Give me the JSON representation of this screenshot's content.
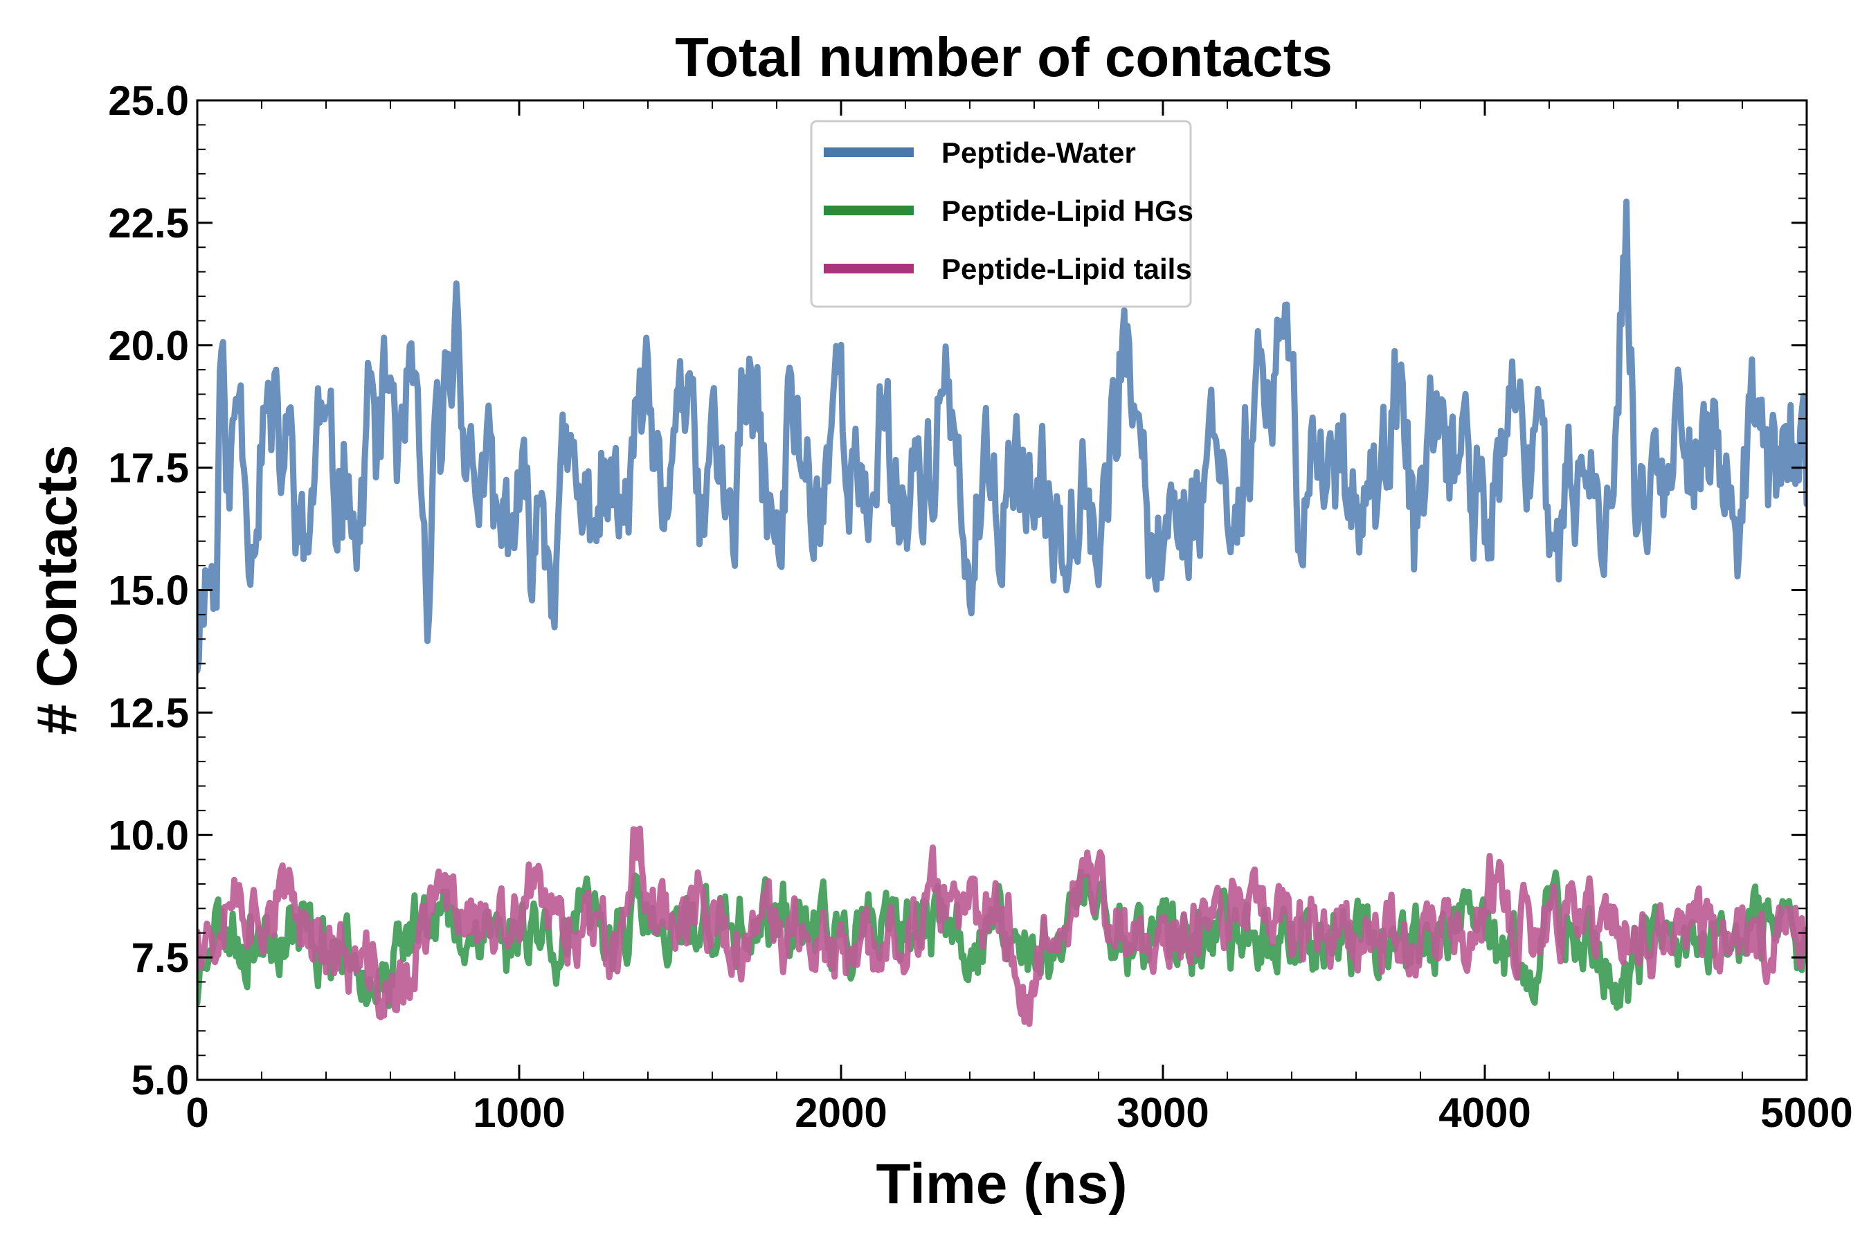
{
  "chart_data": {
    "type": "line",
    "title": "Total number of contacts",
    "xlabel": "Time (ns)",
    "ylabel": "# Contacts",
    "xlim": [
      0,
      5000
    ],
    "ylim": [
      5.0,
      25.0
    ],
    "x_ticks": [
      0,
      1000,
      2000,
      3000,
      4000,
      5000
    ],
    "x_tick_labels": [
      "0",
      "1000",
      "2000",
      "3000",
      "4000",
      "5000"
    ],
    "y_ticks": [
      5.0,
      7.5,
      10.0,
      12.5,
      15.0,
      17.5,
      20.0,
      22.5,
      25.0
    ],
    "y_tick_labels": [
      "5.0",
      "7.5",
      "10.0",
      "12.5",
      "15.0",
      "17.5",
      "20.0",
      "22.5",
      "25.0"
    ],
    "grid": false,
    "legend_position": "top-center",
    "series": [
      {
        "name": "Peptide-Water",
        "legend_color": "#4a78aa",
        "line_color": "#6a90bd",
        "anchors": [
          [
            0,
            14.0
          ],
          [
            20,
            15.7
          ],
          [
            60,
            15.2
          ],
          [
            70,
            19.9
          ],
          [
            100,
            17.0
          ],
          [
            130,
            19.4
          ],
          [
            170,
            16.2
          ],
          [
            210,
            18.8
          ],
          [
            260,
            17.6
          ],
          [
            300,
            17.9
          ],
          [
            330,
            15.3
          ],
          [
            380,
            18.6
          ],
          [
            430,
            16.8
          ],
          [
            470,
            18.2
          ],
          [
            500,
            15.6
          ],
          [
            530,
            19.0
          ],
          [
            560,
            17.8
          ],
          [
            600,
            19.4
          ],
          [
            640,
            17.1
          ],
          [
            660,
            19.6
          ],
          [
            700,
            16.0
          ],
          [
            720,
            14.1
          ],
          [
            740,
            17.4
          ],
          [
            780,
            19.2
          ],
          [
            810,
            21.0
          ],
          [
            840,
            17.4
          ],
          [
            900,
            17.2
          ],
          [
            940,
            15.8
          ],
          [
            980,
            16.6
          ],
          [
            1000,
            16.4
          ],
          [
            1040,
            15.9
          ],
          [
            1070,
            17.4
          ],
          [
            1100,
            15.7
          ],
          [
            1150,
            17.5
          ],
          [
            1200,
            16.3
          ],
          [
            1250,
            17.1
          ],
          [
            1290,
            16.8
          ],
          [
            1330,
            16.2
          ],
          [
            1370,
            18.8
          ],
          [
            1420,
            17.8
          ],
          [
            1450,
            15.1
          ],
          [
            1490,
            19.5
          ],
          [
            1530,
            18.2
          ],
          [
            1570,
            16.2
          ],
          [
            1610,
            18.1
          ],
          [
            1660,
            15.8
          ],
          [
            1700,
            19.1
          ],
          [
            1750,
            17.7
          ],
          [
            1810,
            15.4
          ],
          [
            1840,
            18.8
          ],
          [
            1880,
            17.8
          ],
          [
            1930,
            16.5
          ],
          [
            1990,
            19.6
          ],
          [
            2030,
            17.8
          ],
          [
            2080,
            16.0
          ],
          [
            2130,
            18.9
          ],
          [
            2180,
            16.8
          ],
          [
            2240,
            17.6
          ],
          [
            2280,
            17.2
          ],
          [
            2320,
            19.4
          ],
          [
            2360,
            16.8
          ],
          [
            2400,
            15.1
          ],
          [
            2440,
            17.3
          ],
          [
            2480,
            16.3
          ],
          [
            2530,
            17.8
          ],
          [
            2580,
            17.0
          ],
          [
            2620,
            16.5
          ],
          [
            2700,
            16.5
          ],
          [
            2760,
            17.9
          ],
          [
            2800,
            16.0
          ],
          [
            2850,
            18.1
          ],
          [
            2880,
            20.8
          ],
          [
            2920,
            17.4
          ],
          [
            2980,
            15.2
          ],
          [
            3020,
            17.1
          ],
          [
            3060,
            16.5
          ],
          [
            3120,
            16.9
          ],
          [
            3170,
            18.9
          ],
          [
            3210,
            16.3
          ],
          [
            3250,
            17.5
          ],
          [
            3300,
            19.3
          ],
          [
            3340,
            17.6
          ],
          [
            3370,
            21.0
          ],
          [
            3420,
            17.0
          ],
          [
            3470,
            17.7
          ],
          [
            3530,
            17.6
          ],
          [
            3600,
            17.4
          ],
          [
            3660,
            16.9
          ],
          [
            3700,
            17.5
          ],
          [
            3740,
            19.0
          ],
          [
            3780,
            16.1
          ],
          [
            3830,
            18.3
          ],
          [
            3880,
            16.9
          ],
          [
            3920,
            18.2
          ],
          [
            3970,
            17.1
          ],
          [
            4030,
            16.9
          ],
          [
            4080,
            18.6
          ],
          [
            4130,
            17.2
          ],
          [
            4170,
            19.7
          ],
          [
            4210,
            15.0
          ],
          [
            4230,
            14.8
          ],
          [
            4260,
            17.0
          ],
          [
            4300,
            17.5
          ],
          [
            4340,
            16.1
          ],
          [
            4380,
            17.5
          ],
          [
            4410,
            18.5
          ],
          [
            4440,
            22.7
          ],
          [
            4470,
            16.5
          ],
          [
            4510,
            17.5
          ],
          [
            4560,
            17.0
          ],
          [
            4620,
            19.1
          ],
          [
            4660,
            17.5
          ],
          [
            4720,
            17.8
          ],
          [
            4780,
            16.2
          ],
          [
            4830,
            18.0
          ],
          [
            4880,
            17.2
          ],
          [
            4940,
            18.0
          ],
          [
            4980,
            17.6
          ],
          [
            5000,
            17.1
          ]
        ],
        "noise_amp": 1.1,
        "seed": 11
      },
      {
        "name": "Peptide-Lipid HGs",
        "legend_color": "#2c8a3c",
        "line_color": "#3f9c56",
        "anchors": [
          [
            0,
            6.9
          ],
          [
            40,
            8.3
          ],
          [
            120,
            8.0
          ],
          [
            200,
            7.8
          ],
          [
            300,
            8.1
          ],
          [
            400,
            7.7
          ],
          [
            480,
            7.6
          ],
          [
            560,
            7.3
          ],
          [
            600,
            6.9
          ],
          [
            650,
            7.9
          ],
          [
            720,
            8.7
          ],
          [
            800,
            8.0
          ],
          [
            900,
            8.2
          ],
          [
            960,
            7.8
          ],
          [
            1040,
            8.4
          ],
          [
            1100,
            7.9
          ],
          [
            1200,
            8.1
          ],
          [
            1300,
            8.2
          ],
          [
            1400,
            8.3
          ],
          [
            1460,
            7.4
          ],
          [
            1520,
            8.2
          ],
          [
            1600,
            8.2
          ],
          [
            1700,
            7.9
          ],
          [
            1800,
            8.3
          ],
          [
            1900,
            8.2
          ],
          [
            2000,
            7.9
          ],
          [
            2100,
            7.8
          ],
          [
            2200,
            8.0
          ],
          [
            2300,
            8.1
          ],
          [
            2400,
            7.8
          ],
          [
            2500,
            8.1
          ],
          [
            2600,
            7.4
          ],
          [
            2700,
            8.2
          ],
          [
            2760,
            8.9
          ],
          [
            2860,
            7.9
          ],
          [
            2960,
            8.0
          ],
          [
            3000,
            8.2
          ],
          [
            3100,
            7.8
          ],
          [
            3200,
            8.0
          ],
          [
            3300,
            7.9
          ],
          [
            3400,
            8.1
          ],
          [
            3500,
            7.9
          ],
          [
            3600,
            8.0
          ],
          [
            3700,
            7.9
          ],
          [
            3800,
            8.0
          ],
          [
            3900,
            7.9
          ],
          [
            4000,
            8.0
          ],
          [
            4080,
            7.6
          ],
          [
            4130,
            7.1
          ],
          [
            4200,
            8.2
          ],
          [
            4300,
            7.9
          ],
          [
            4400,
            7.4
          ],
          [
            4430,
            6.5
          ],
          [
            4460,
            7.3
          ],
          [
            4550,
            7.8
          ],
          [
            4650,
            7.7
          ],
          [
            4750,
            8.0
          ],
          [
            4850,
            7.9
          ],
          [
            4950,
            8.1
          ],
          [
            5000,
            7.6
          ]
        ],
        "noise_amp": 0.6,
        "seed": 23
      },
      {
        "name": "Peptide-Lipid tails",
        "legend_color": "#a8357a",
        "line_color": "#bd5c95",
        "anchors": [
          [
            0,
            8.3
          ],
          [
            60,
            8.0
          ],
          [
            100,
            9.0
          ],
          [
            180,
            8.4
          ],
          [
            260,
            8.6
          ],
          [
            350,
            8.2
          ],
          [
            430,
            7.6
          ],
          [
            500,
            7.3
          ],
          [
            580,
            6.8
          ],
          [
            620,
            6.6
          ],
          [
            700,
            7.8
          ],
          [
            760,
            8.9
          ],
          [
            840,
            8.5
          ],
          [
            900,
            7.9
          ],
          [
            980,
            8.0
          ],
          [
            1030,
            8.8
          ],
          [
            1100,
            8.2
          ],
          [
            1200,
            8.3
          ],
          [
            1300,
            8.0
          ],
          [
            1360,
            9.8
          ],
          [
            1400,
            8.8
          ],
          [
            1480,
            8.4
          ],
          [
            1560,
            8.3
          ],
          [
            1640,
            7.8
          ],
          [
            1720,
            7.6
          ],
          [
            1800,
            8.2
          ],
          [
            1900,
            8.0
          ],
          [
            2000,
            7.3
          ],
          [
            2100,
            7.6
          ],
          [
            2200,
            8.1
          ],
          [
            2260,
            8.4
          ],
          [
            2300,
            8.9
          ],
          [
            2360,
            8.1
          ],
          [
            2450,
            8.4
          ],
          [
            2520,
            8.2
          ],
          [
            2580,
            6.4
          ],
          [
            2640,
            8.1
          ],
          [
            2720,
            8.8
          ],
          [
            2800,
            8.9
          ],
          [
            2880,
            7.7
          ],
          [
            2960,
            7.9
          ],
          [
            3040,
            7.9
          ],
          [
            3100,
            8.1
          ],
          [
            3200,
            8.3
          ],
          [
            3280,
            9.0
          ],
          [
            3360,
            8.3
          ],
          [
            3440,
            8.2
          ],
          [
            3520,
            8.4
          ],
          [
            3600,
            8.0
          ],
          [
            3700,
            8.1
          ],
          [
            3800,
            7.8
          ],
          [
            3880,
            8.0
          ],
          [
            3960,
            7.6
          ],
          [
            4020,
            8.9
          ],
          [
            4080,
            8.1
          ],
          [
            4160,
            7.9
          ],
          [
            4240,
            8.2
          ],
          [
            4320,
            8.4
          ],
          [
            4400,
            8.3
          ],
          [
            4460,
            7.5
          ],
          [
            4520,
            7.8
          ],
          [
            4600,
            8.0
          ],
          [
            4700,
            8.2
          ],
          [
            4800,
            7.8
          ],
          [
            4900,
            8.1
          ],
          [
            5000,
            8.4
          ]
        ],
        "noise_amp": 0.6,
        "seed": 37
      }
    ]
  }
}
